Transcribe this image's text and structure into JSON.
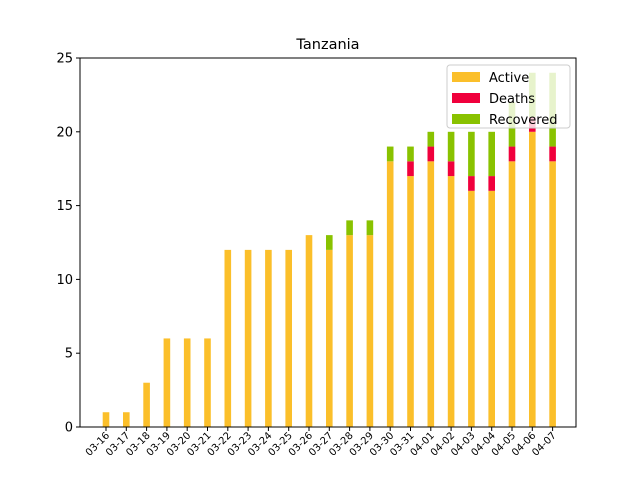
{
  "chart_data": {
    "type": "bar",
    "stacked": true,
    "title": "Tanzania",
    "xlabel": "",
    "ylabel": "",
    "ylim": [
      0,
      25
    ],
    "yticks": [
      0,
      5,
      10,
      15,
      20,
      25
    ],
    "grid": false,
    "legend_position": "top-right",
    "categories": [
      "03-16",
      "03-17",
      "03-18",
      "03-19",
      "03-20",
      "03-21",
      "03-22",
      "03-23",
      "03-24",
      "03-25",
      "03-26",
      "03-27",
      "03-28",
      "03-29",
      "03-30",
      "03-31",
      "04-01",
      "04-02",
      "04-03",
      "04-04",
      "04-05",
      "04-06",
      "04-07"
    ],
    "series": [
      {
        "name": "Active",
        "color": "#fbbf2a",
        "values": [
          1,
          1,
          3,
          6,
          6,
          6,
          12,
          12,
          12,
          12,
          13,
          12,
          13,
          13,
          18,
          17,
          18,
          17,
          16,
          16,
          18,
          20,
          18
        ]
      },
      {
        "name": "Deaths",
        "color": "#f0003c",
        "values": [
          0,
          0,
          0,
          0,
          0,
          0,
          0,
          0,
          0,
          0,
          0,
          0,
          0,
          0,
          0,
          1,
          1,
          1,
          1,
          1,
          1,
          1,
          1
        ]
      },
      {
        "name": "Recovered",
        "color": "#89c200",
        "values": [
          0,
          0,
          0,
          0,
          0,
          0,
          0,
          0,
          0,
          0,
          0,
          1,
          1,
          1,
          1,
          1,
          1,
          2,
          3,
          3,
          3,
          3,
          5
        ]
      }
    ]
  }
}
